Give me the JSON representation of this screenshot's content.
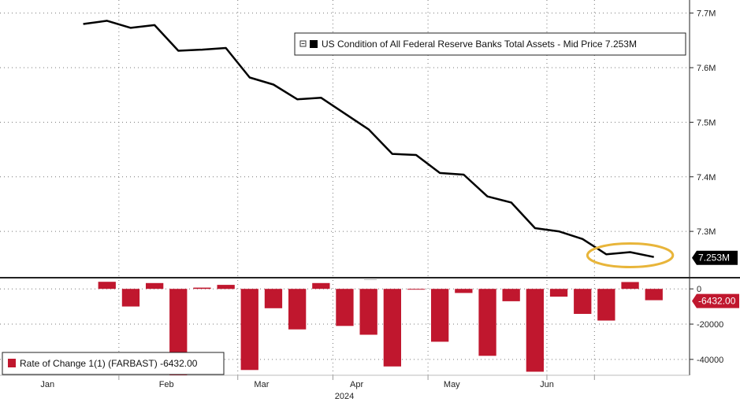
{
  "chart_data": [
    {
      "type": "line",
      "legend": "US Condition of All Federal Reserve Banks Total Assets - Mid Price 7.253M",
      "last_value_label": "7.253M",
      "y_ticks": [
        "7.3M",
        "7.4M",
        "7.5M",
        "7.6M",
        "7.7M"
      ],
      "y_tick_values": [
        7.3,
        7.4,
        7.5,
        7.6,
        7.7
      ],
      "ylim": [
        7.218,
        7.724
      ],
      "x": [
        0,
        1,
        2,
        3,
        4,
        5,
        6,
        7,
        8,
        9,
        10,
        11,
        12,
        13,
        14,
        15,
        16,
        17,
        18,
        19,
        20,
        21,
        22,
        23,
        24
      ],
      "values": [
        7.68,
        7.686,
        7.673,
        7.678,
        7.631,
        7.633,
        7.636,
        7.582,
        7.569,
        7.542,
        7.545,
        7.516,
        7.487,
        7.442,
        7.44,
        7.407,
        7.404,
        7.364,
        7.353,
        7.306,
        7.3,
        7.286,
        7.258,
        7.262,
        7.253
      ],
      "line_color": "#000000",
      "highlight_color": "#e8b53a",
      "grid": true
    },
    {
      "type": "bar",
      "legend": "Rate of Change 1(1) (FARBAST) -6432.00",
      "last_value_label": "-6432.00",
      "y_ticks": [
        "0",
        "-20000",
        "-40000"
      ],
      "y_tick_values": [
        0,
        -20000,
        -40000
      ],
      "ylim": [
        -49000,
        5000
      ],
      "x": [
        1,
        2,
        3,
        4,
        5,
        6,
        7,
        8,
        9,
        10,
        11,
        12,
        13,
        14,
        15,
        16,
        17,
        18,
        19,
        20,
        21,
        22,
        23,
        24
      ],
      "values": [
        4000,
        -10000,
        3300,
        -50000,
        700,
        2300,
        -46000,
        -11000,
        -23000,
        3300,
        -21000,
        -26000,
        -44000,
        -300,
        -30000,
        -2300,
        -38000,
        -7000,
        -47000,
        -4400,
        -14200,
        -18000,
        3900,
        -6432
      ],
      "bar_color": "#c0172e",
      "grid": true
    }
  ],
  "x_axis": {
    "month_labels": [
      "Jan",
      "Feb",
      "Mar",
      "Apr",
      "May",
      "Jun"
    ],
    "month_positions": [
      -1.5,
      3.5,
      7.5,
      11.5,
      15.5,
      19.5
    ],
    "separators": [
      1.5,
      6.5,
      10.5,
      14.5,
      19.5,
      21.5
    ],
    "year_label": "2024",
    "xlim": [
      -3.5,
      25.5
    ]
  }
}
